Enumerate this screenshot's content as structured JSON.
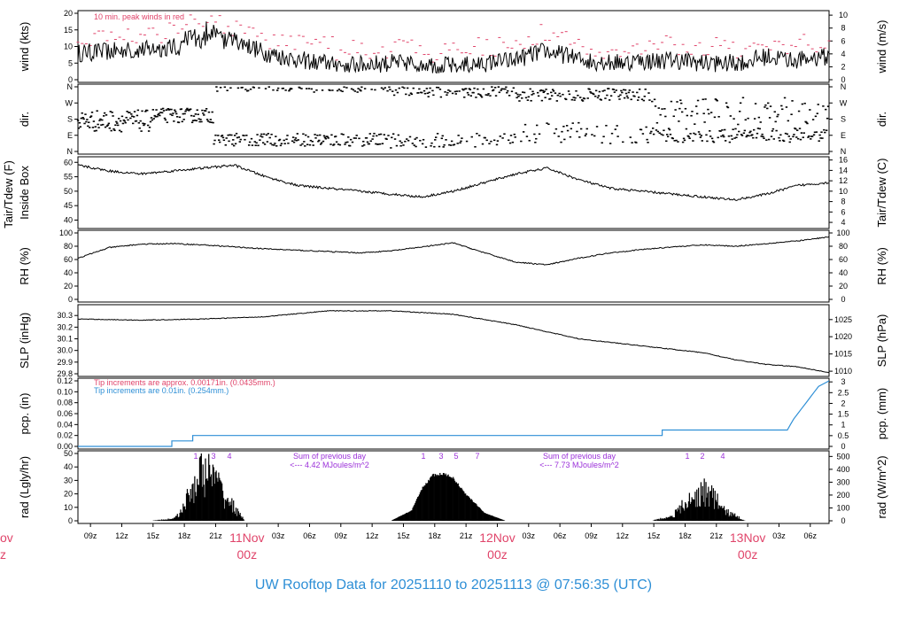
{
  "footer": "UW Rooftop Data for 20251110  to  20251113 @ 07:56:35  (UTC)",
  "colors": {
    "peak": "#e0446a",
    "blue": "#2e8fd6",
    "purple": "#9b30d9",
    "line": "#000000"
  },
  "x_axis": {
    "ticks": [
      "09z",
      "12z",
      "15z",
      "18z",
      "21z",
      "03z",
      "06z",
      "09z",
      "12z",
      "15z",
      "18z",
      "21z",
      "03z",
      "06z",
      "09z",
      "12z",
      "15z",
      "18z",
      "21z",
      "03z",
      "06z"
    ],
    "day_labels": [
      {
        "day": "11Nov",
        "hour": "00z"
      },
      {
        "day": "12Nov",
        "hour": "00z"
      },
      {
        "day": "13Nov",
        "hour": "00z"
      }
    ],
    "edge_fragment": {
      "day": "ov",
      "hour": "z"
    }
  },
  "panels": [
    {
      "id": "wind",
      "ylabel_left": "wind (kts)",
      "ylabel_right": "wind (m/s)",
      "left_ticks": [
        "0",
        "5",
        "10",
        "15",
        "20"
      ],
      "right_ticks": [
        "0",
        "2",
        "4",
        "6",
        "8",
        "10"
      ],
      "annotation": "10 min. peak winds in red"
    },
    {
      "id": "dir",
      "ylabel_left": "dir.",
      "ylabel_right": "dir.",
      "left_ticks": [
        "N",
        "E",
        "S",
        "W",
        "N"
      ],
      "right_ticks": [
        "N",
        "E",
        "S",
        "W",
        "N"
      ]
    },
    {
      "id": "temp",
      "ylabel_left": "Tair/Tdew (F)",
      "ylabel_left2": "Inside Box",
      "ylabel_right": "Tair/Tdew (C)",
      "left_ticks": [
        "40",
        "45",
        "50",
        "55",
        "60"
      ],
      "right_ticks": [
        "4",
        "6",
        "8",
        "10",
        "12",
        "14",
        "16"
      ]
    },
    {
      "id": "rh",
      "ylabel_left": "RH (%)",
      "ylabel_right": "RH (%)",
      "left_ticks": [
        "0",
        "20",
        "40",
        "60",
        "80",
        "100"
      ],
      "right_ticks": [
        "0",
        "20",
        "40",
        "60",
        "80",
        "100"
      ]
    },
    {
      "id": "slp",
      "ylabel_left": "SLP (inHg)",
      "ylabel_right": "SLP (hPa)",
      "left_ticks": [
        "29.8",
        "29.9",
        "30.0",
        "30.1",
        "30.2",
        "30.3"
      ],
      "right_ticks": [
        "1010",
        "1015",
        "1020",
        "1025"
      ]
    },
    {
      "id": "pcp",
      "ylabel_left": "pcp. (in)",
      "ylabel_right": "pcp. (mm)",
      "left_ticks": [
        "0.00",
        "0.02",
        "0.04",
        "0.06",
        "0.08",
        "0.10",
        "0.12"
      ],
      "right_ticks": [
        "0",
        "0.5",
        "1",
        "1.5",
        "2",
        "2.5",
        "3"
      ],
      "note1": "Tip increments are approx. 0.00171in. (0.0435mm.)",
      "note2": "Tip increments are 0.01in. (0.254mm.)"
    },
    {
      "id": "rad",
      "ylabel_left": "rad (Lgly/hr)",
      "ylabel_right": "rad (W/m^2)",
      "left_ticks": [
        "0",
        "10",
        "20",
        "30",
        "40",
        "50"
      ],
      "right_ticks": [
        "0",
        "100",
        "200",
        "300",
        "400",
        "500"
      ],
      "sum1_title": "Sum of previous day",
      "sum1_value": "<--- 4.42 MJoules/m^2",
      "sum2_title": "Sum of previous day",
      "sum2_value": "<--- 7.73 MJoules/m^2"
    }
  ],
  "chart_data": {
    "type": "line",
    "time_span_hours": 72,
    "series": [
      {
        "panel": "wind",
        "name": "10 min. peak winds in red",
        "kind": "mean_and_peak",
        "points_hours": [
          0,
          6,
          10,
          12,
          15,
          18,
          21,
          24,
          27,
          30,
          33,
          36,
          42,
          45,
          48,
          51,
          54,
          57,
          60,
          63,
          66,
          69,
          72
        ],
        "wind_kts": [
          8,
          9,
          10,
          11,
          12,
          8,
          6,
          5,
          4.5,
          5,
          5,
          4,
          6,
          9,
          6,
          5,
          5.5,
          6,
          5,
          5,
          7,
          6,
          7
        ]
      },
      {
        "panel": "temp",
        "name": "",
        "unit": "F",
        "x_hours": [
          0,
          3,
          6,
          9,
          12,
          15,
          18,
          21,
          24,
          27,
          30,
          33,
          36,
          39,
          42,
          45,
          48,
          51,
          54,
          57,
          60,
          63,
          66,
          69,
          72
        ],
        "values": [
          59,
          57,
          56,
          57,
          58,
          59,
          55,
          52,
          51,
          50,
          49,
          48,
          50,
          53,
          56,
          58,
          54,
          51,
          50,
          49,
          48,
          47,
          49,
          52,
          53
        ]
      },
      {
        "panel": "rh",
        "name": "",
        "unit": "%",
        "x_hours": [
          0,
          3,
          6,
          9,
          12,
          15,
          18,
          21,
          24,
          27,
          30,
          33,
          36,
          39,
          42,
          45,
          48,
          51,
          54,
          57,
          60,
          63,
          66,
          69,
          72
        ],
        "values": [
          62,
          78,
          83,
          84,
          82,
          79,
          76,
          74,
          72,
          70,
          73,
          79,
          85,
          70,
          56,
          52,
          62,
          70,
          75,
          79,
          82,
          80,
          84,
          88,
          94
        ]
      },
      {
        "panel": "slp",
        "name": "",
        "unit": "inHg",
        "x_hours": [
          0,
          6,
          12,
          18,
          24,
          30,
          36,
          42,
          48,
          54,
          60,
          63,
          66,
          69,
          72
        ],
        "values": [
          30.27,
          30.26,
          30.27,
          30.29,
          30.34,
          30.34,
          30.31,
          30.22,
          30.1,
          30.04,
          29.98,
          29.92,
          29.88,
          29.86,
          29.81
        ]
      },
      {
        "panel": "pcp",
        "name": "",
        "unit": "in",
        "x_hours": [
          0,
          9,
          11,
          14,
          56,
          68,
          69,
          70,
          71,
          72
        ],
        "values": [
          0.0,
          0.0,
          0.01,
          0.02,
          0.02,
          0.03,
          0.05,
          0.08,
          0.1,
          0.12
        ]
      },
      {
        "panel": "rad",
        "name": "",
        "unit": "Lgly/hr",
        "x_hours": [
          7,
          9,
          10,
          11,
          12,
          13,
          14,
          16,
          30,
          32,
          33,
          34,
          35,
          36,
          37,
          39,
          41,
          55,
          57,
          58,
          59,
          60,
          61,
          62,
          64
        ],
        "values": [
          0,
          2,
          10,
          35,
          50,
          44,
          26,
          0,
          0,
          8,
          25,
          35,
          36,
          33,
          22,
          6,
          0,
          0,
          5,
          15,
          22,
          30,
          23,
          10,
          0
        ]
      }
    ],
    "direction_cardinals": [
      "N",
      "E",
      "S",
      "W",
      "N"
    ],
    "grid": false,
    "legend": "none"
  }
}
